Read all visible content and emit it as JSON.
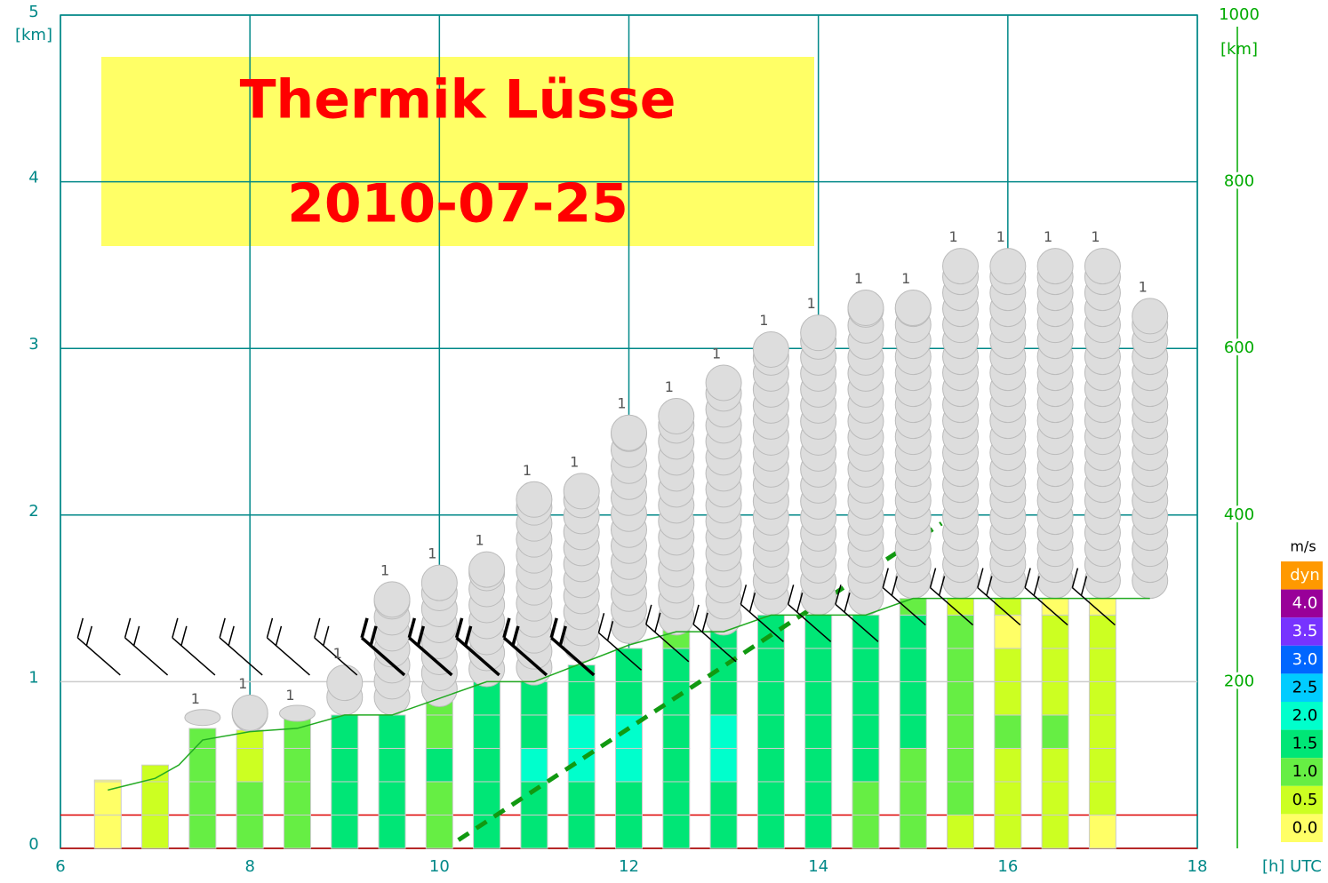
{
  "chart_data": {
    "type": "thermal",
    "title": "Thermik Lüsse",
    "subtitle": "2010-07-25",
    "ylabel": "[km]",
    "y2label": "[km]",
    "xlabel": "[h] UTC",
    "xlim": [
      6,
      18
    ],
    "xticks": [
      6,
      8,
      10,
      12,
      14,
      16,
      18
    ],
    "ylim": [
      0,
      5
    ],
    "yticks": [
      0,
      1,
      2,
      3,
      4,
      5
    ],
    "y2lim": [
      0,
      1000
    ],
    "y2ticks": [
      200,
      400,
      600,
      800,
      1000
    ],
    "grid": true,
    "layer": 0.2,
    "hline": 0.2,
    "legend": {
      "title": "m/s",
      "items": [
        {
          "label": "dyn",
          "color": "#ff9900"
        },
        {
          "value": 4,
          "label": "4.0",
          "color": "#990099"
        },
        {
          "value": 3.5,
          "label": "3.5",
          "color": "#7733ff"
        },
        {
          "value": 3,
          "label": "3.0",
          "color": "#0066ff"
        },
        {
          "value": 2.5,
          "label": "2.5",
          "color": "#00ccff"
        },
        {
          "value": 2,
          "label": "2.0",
          "color": "#00ffcc"
        },
        {
          "value": 1.5,
          "label": "1.5",
          "color": "#00e676"
        },
        {
          "value": 1,
          "label": "1.0",
          "color": "#66ee44"
        },
        {
          "value": 0.5,
          "label": "0.5",
          "color": "#ccff22"
        },
        {
          "value": 0,
          "label": "0.0",
          "color": "#ffff66"
        }
      ]
    },
    "columns": [
      {
        "x": 6.5,
        "top": 0.41,
        "climb": [
          0,
          0,
          0
        ]
      },
      {
        "x": 7,
        "top": 0.5,
        "climb": [
          0.5,
          0.5,
          0.5
        ]
      },
      {
        "x": 7.5,
        "top": 0.72,
        "climb": [
          1,
          1,
          1,
          1
        ]
      },
      {
        "x": 8,
        "top": 0.71,
        "climb": [
          1,
          1,
          0.5,
          0.5
        ]
      },
      {
        "x": 8.5,
        "top": 0.8,
        "climb": [
          1,
          1,
          1,
          1
        ]
      },
      {
        "x": 9,
        "top": 0.8,
        "climb": [
          1.5,
          1.5,
          1.5,
          1.5
        ]
      },
      {
        "x": 9.5,
        "top": 0.8,
        "climb": [
          1.5,
          1.5,
          1.5,
          1.5
        ]
      },
      {
        "x": 10,
        "top": 0.91,
        "climb": [
          1,
          1,
          1.5,
          1,
          1
        ]
      },
      {
        "x": 10.5,
        "top": 1.0,
        "climb": [
          1.5,
          1.5,
          1.5,
          1.5,
          1.5
        ]
      },
      {
        "x": 11,
        "top": 1.0,
        "climb": [
          1.5,
          1.5,
          2,
          1.5,
          1.5
        ]
      },
      {
        "x": 11.5,
        "top": 1.1,
        "climb": [
          1.5,
          1.5,
          2,
          2,
          1.5,
          1.5
        ]
      },
      {
        "x": 12,
        "top": 1.2,
        "climb": [
          1.5,
          1.5,
          2,
          2,
          1.5,
          1.5
        ]
      },
      {
        "x": 12.5,
        "top": 1.31,
        "climb": [
          1.5,
          1.5,
          1.5,
          1.5,
          1.5,
          1.5,
          1
        ]
      },
      {
        "x": 13,
        "top": 1.31,
        "climb": [
          1.5,
          1.5,
          2,
          2,
          1.5,
          1.5,
          1.5
        ]
      },
      {
        "x": 13.5,
        "top": 1.4,
        "climb": [
          1.5,
          1.5,
          1.5,
          1.5,
          1.5,
          1.5,
          1.5
        ]
      },
      {
        "x": 14,
        "top": 1.4,
        "climb": [
          1.5,
          1.5,
          1.5,
          1.5,
          1.5,
          1.5,
          1.5
        ]
      },
      {
        "x": 14.5,
        "top": 1.4,
        "climb": [
          1,
          1,
          1.5,
          1.5,
          1.5,
          1.5,
          1.5
        ]
      },
      {
        "x": 15,
        "top": 1.5,
        "climb": [
          1,
          1,
          1,
          1.5,
          1.5,
          1.5,
          1.5,
          1
        ]
      },
      {
        "x": 15.5,
        "top": 1.5,
        "climb": [
          0.5,
          1,
          1,
          1,
          1,
          1,
          1,
          0.5
        ]
      },
      {
        "x": 16,
        "top": 1.5,
        "climb": [
          0.5,
          0.5,
          0.5,
          1,
          0.5,
          0.5,
          0,
          0.5
        ]
      },
      {
        "x": 16.5,
        "top": 1.5,
        "climb": [
          0.5,
          0.5,
          0.5,
          1,
          0.5,
          0.5,
          0.5,
          0
        ]
      },
      {
        "x": 17,
        "top": 1.5,
        "climb": [
          0,
          0.5,
          0.5,
          0.5,
          0.5,
          0.5,
          0.5,
          0
        ]
      }
    ],
    "clouds": [
      {
        "x": 7.5,
        "base": 0.74,
        "top": 0.83,
        "cover": 1
      },
      {
        "x": 8,
        "base": 0.7,
        "top": 0.92,
        "cover": 1
      },
      {
        "x": 8.5,
        "base": 0.77,
        "top": 0.85,
        "cover": 1
      },
      {
        "x": 9,
        "base": 0.8,
        "top": 1.1,
        "cover": 1
      },
      {
        "x": 9.5,
        "base": 0.8,
        "top": 1.6,
        "cover": 1
      },
      {
        "x": 10,
        "base": 0.85,
        "top": 1.7,
        "cover": 1
      },
      {
        "x": 10.5,
        "base": 0.97,
        "top": 1.78,
        "cover": 1
      },
      {
        "x": 11,
        "base": 0.98,
        "top": 2.2,
        "cover": 1
      },
      {
        "x": 11.5,
        "base": 1.12,
        "top": 2.25,
        "cover": 1
      },
      {
        "x": 12,
        "base": 1.23,
        "top": 2.6,
        "cover": 1
      },
      {
        "x": 12.5,
        "base": 1.28,
        "top": 2.7,
        "cover": 1
      },
      {
        "x": 13,
        "base": 1.28,
        "top": 2.9,
        "cover": 1
      },
      {
        "x": 13.5,
        "base": 1.4,
        "top": 3.1,
        "cover": 1
      },
      {
        "x": 14,
        "base": 1.4,
        "top": 3.2,
        "cover": 1
      },
      {
        "x": 14.5,
        "base": 1.4,
        "top": 3.35,
        "cover": 1
      },
      {
        "x": 15,
        "base": 1.5,
        "top": 3.35,
        "cover": 1
      },
      {
        "x": 15.5,
        "base": 1.5,
        "top": 3.6,
        "cover": 1
      },
      {
        "x": 16,
        "base": 1.5,
        "top": 3.6,
        "cover": 1
      },
      {
        "x": 16.5,
        "base": 1.5,
        "top": 3.6,
        "cover": 1
      },
      {
        "x": 17,
        "base": 1.5,
        "top": 3.6,
        "cover": 1
      },
      {
        "x": 17.5,
        "base": 1.5,
        "top": 3.3,
        "cover": 1
      }
    ],
    "series": [
      {
        "name": "thermal top",
        "color": "#22aa22",
        "style": "solid",
        "x": [
          6.5,
          7,
          7.25,
          7.5,
          8,
          8.5,
          9,
          9.5,
          10,
          10.5,
          11,
          12,
          12.5,
          13,
          13.5,
          14.5,
          15,
          17.5
        ],
        "values": [
          0.35,
          0.42,
          0.5,
          0.65,
          0.7,
          0.72,
          0.8,
          0.8,
          0.9,
          1.0,
          1.0,
          1.22,
          1.3,
          1.3,
          1.4,
          1.4,
          1.5,
          1.5
        ]
      },
      {
        "name": "cloud base",
        "color": "#119911",
        "style": "dashed",
        "x": [
          10.2,
          15.3
        ],
        "values": [
          0.05,
          1.95
        ]
      }
    ]
  }
}
